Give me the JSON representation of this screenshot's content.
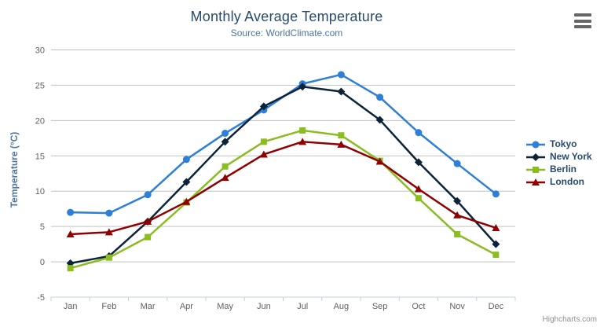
{
  "chart_data": {
    "type": "line",
    "title": "Monthly Average Temperature",
    "subtitle": "Source: WorldClimate.com",
    "xlabel": "",
    "ylabel": "Temperature (°C)",
    "ylim": [
      -5,
      30
    ],
    "yticks": [
      30,
      25,
      20,
      15,
      10,
      5,
      0,
      -5
    ],
    "grid": true,
    "legend_position": "right",
    "categories": [
      "Jan",
      "Feb",
      "Mar",
      "Apr",
      "May",
      "Jun",
      "Jul",
      "Aug",
      "Sep",
      "Oct",
      "Nov",
      "Dec"
    ],
    "series": [
      {
        "name": "Tokyo",
        "color": "#2f7ed8",
        "marker": "circle",
        "values": [
          7.0,
          6.9,
          9.5,
          14.5,
          18.2,
          21.5,
          25.2,
          26.5,
          23.3,
          18.3,
          13.9,
          9.6
        ]
      },
      {
        "name": "New York",
        "color": "#0d233a",
        "marker": "diamond",
        "values": [
          -0.2,
          0.8,
          5.7,
          11.3,
          17.0,
          22.0,
          24.8,
          24.1,
          20.1,
          14.1,
          8.6,
          2.5
        ]
      },
      {
        "name": "Berlin",
        "color": "#8bbc21",
        "marker": "square",
        "values": [
          -0.9,
          0.6,
          3.5,
          8.4,
          13.5,
          17.0,
          18.6,
          17.9,
          14.3,
          9.0,
          3.9,
          1.0
        ]
      },
      {
        "name": "London",
        "color": "#910000",
        "marker": "triangle",
        "values": [
          3.9,
          4.2,
          5.7,
          8.5,
          11.9,
          15.2,
          17.0,
          16.6,
          14.2,
          10.3,
          6.6,
          4.8
        ]
      }
    ]
  },
  "credit": "Highcharts.com",
  "icons": {
    "export_menu": "hamburger-icon"
  },
  "colors": {
    "title": "#274b6d",
    "subtitle": "#4d759e",
    "axis_label": "#606060",
    "axis_title": "#4d759e",
    "gridline": "#C0C0C0",
    "axis_line": "#C0D0E0",
    "legend_text": "#274b6d",
    "credit": "#909090",
    "menu_icon": "#666666"
  }
}
